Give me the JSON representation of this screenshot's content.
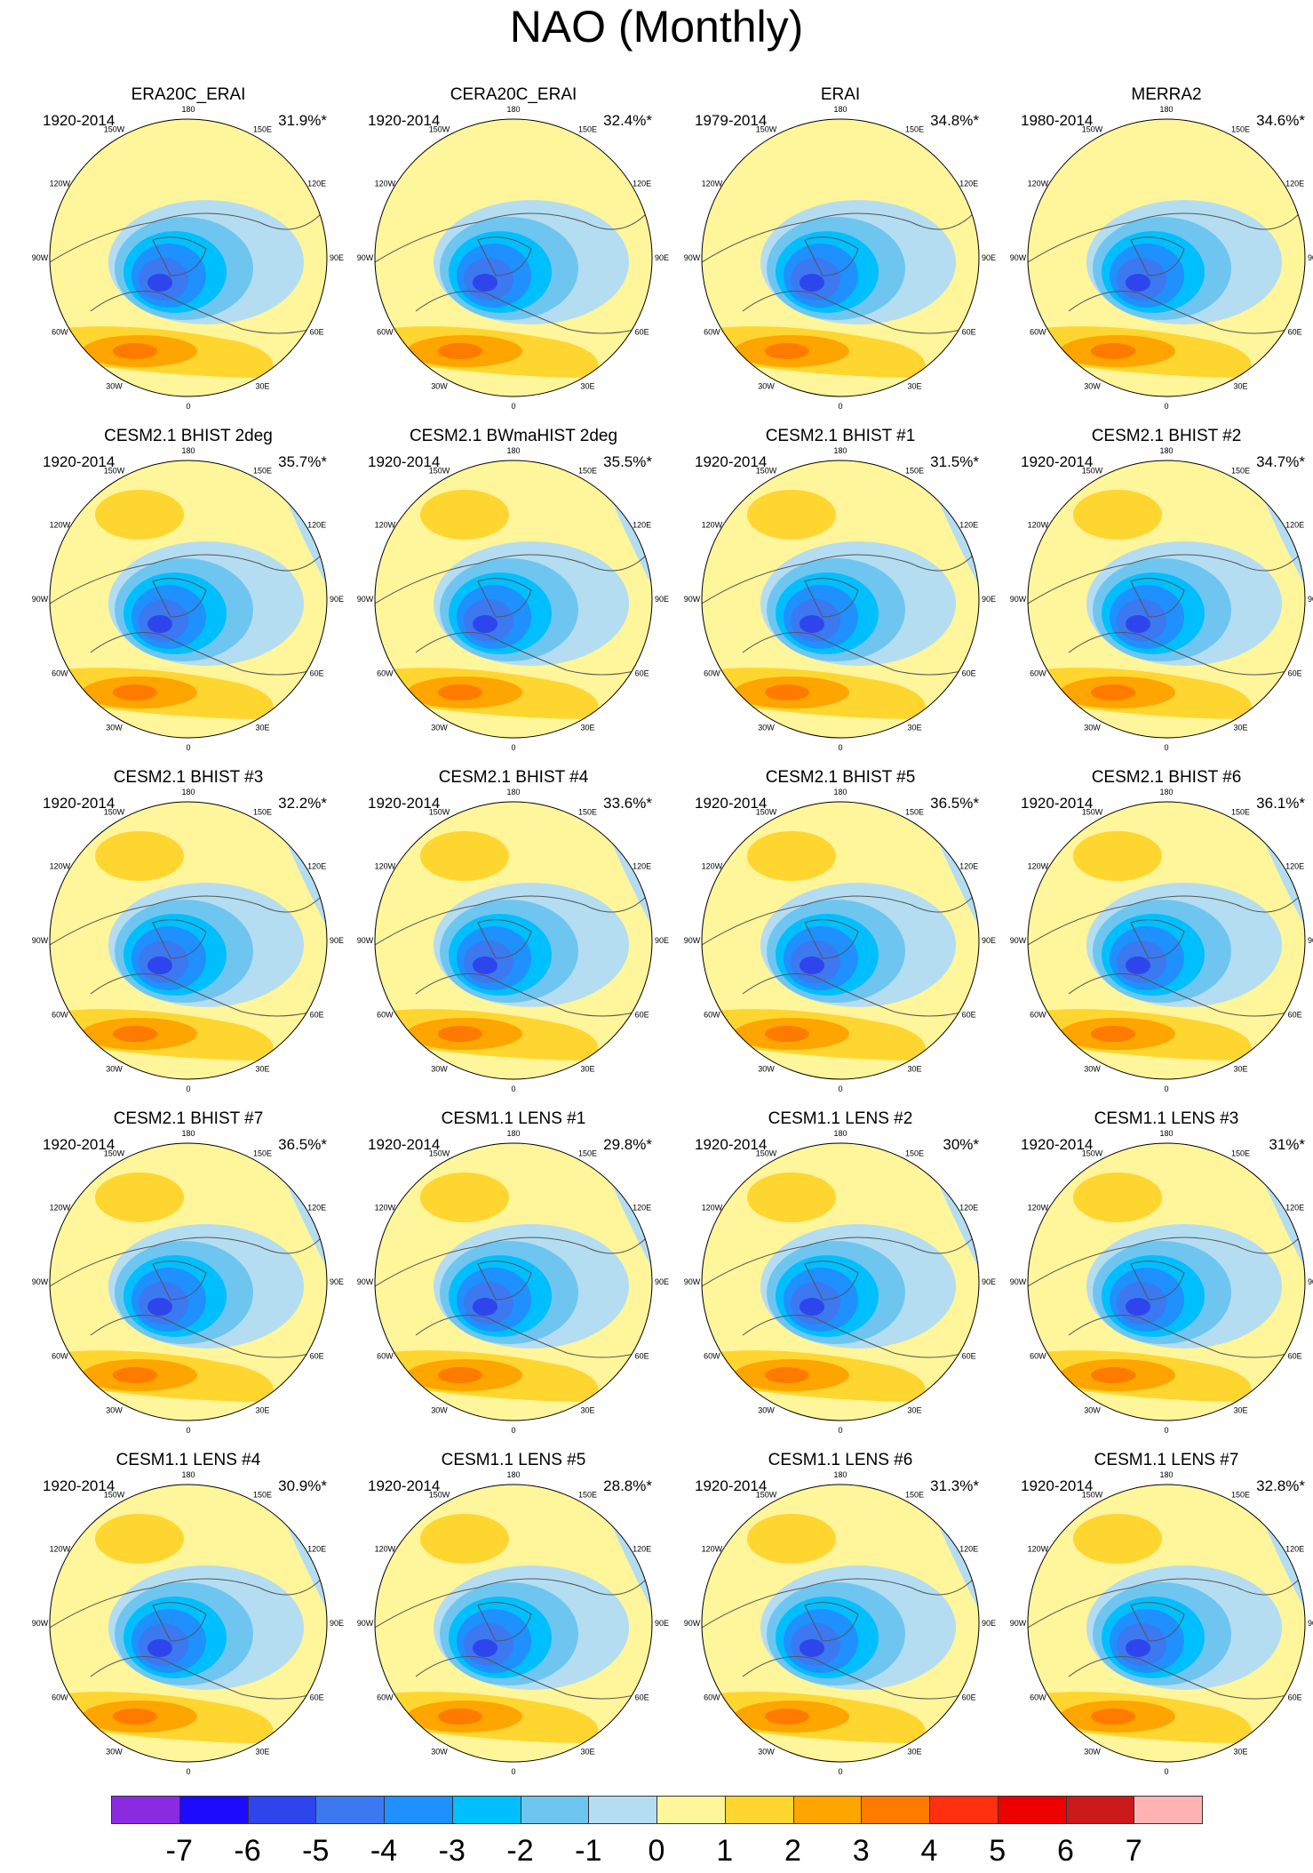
{
  "title": "NAO (Monthly)",
  "chart_data": {
    "type": "heatmap",
    "title": "NAO (Monthly)",
    "projection": "north polar stereographic",
    "longitude_labels": [
      "180",
      "150E",
      "120E",
      "90E",
      "60E",
      "30E",
      "0",
      "30W",
      "60W",
      "90W",
      "120W",
      "150W"
    ],
    "panels": [
      {
        "name": "ERA20C_ERAI",
        "years": "1920-2014",
        "variance": "31.9%*"
      },
      {
        "name": "CERA20C_ERAI",
        "years": "1920-2014",
        "variance": "32.4%*"
      },
      {
        "name": "ERAI",
        "years": "1979-2014",
        "variance": "34.8%*"
      },
      {
        "name": "MERRA2",
        "years": "1980-2014",
        "variance": "34.6%*"
      },
      {
        "name": "CESM2.1 BHIST 2deg",
        "years": "1920-2014",
        "variance": "35.7%*"
      },
      {
        "name": "CESM2.1 BWmaHIST 2deg",
        "years": "1920-2014",
        "variance": "35.5%*"
      },
      {
        "name": "CESM2.1 BHIST #1",
        "years": "1920-2014",
        "variance": "31.5%*"
      },
      {
        "name": "CESM2.1 BHIST #2",
        "years": "1920-2014",
        "variance": "34.7%*"
      },
      {
        "name": "CESM2.1 BHIST #3",
        "years": "1920-2014",
        "variance": "32.2%*"
      },
      {
        "name": "CESM2.1 BHIST #4",
        "years": "1920-2014",
        "variance": "33.6%*"
      },
      {
        "name": "CESM2.1 BHIST #5",
        "years": "1920-2014",
        "variance": "36.5%*"
      },
      {
        "name": "CESM2.1 BHIST #6",
        "years": "1920-2014",
        "variance": "36.1%*"
      },
      {
        "name": "CESM2.1 BHIST #7",
        "years": "1920-2014",
        "variance": "36.5%*"
      },
      {
        "name": "CESM1.1 LENS #1",
        "years": "1920-2014",
        "variance": "29.8%*"
      },
      {
        "name": "CESM1.1 LENS #2",
        "years": "1920-2014",
        "variance": "30%*"
      },
      {
        "name": "CESM1.1 LENS #3",
        "years": "1920-2014",
        "variance": "31%*"
      },
      {
        "name": "CESM1.1 LENS #4",
        "years": "1920-2014",
        "variance": "30.9%*"
      },
      {
        "name": "CESM1.1 LENS #5",
        "years": "1920-2014",
        "variance": "28.8%*"
      },
      {
        "name": "CESM1.1 LENS #6",
        "years": "1920-2014",
        "variance": "31.3%*"
      },
      {
        "name": "CESM1.1 LENS #7",
        "years": "1920-2014",
        "variance": "32.8%*"
      }
    ],
    "colorbar": {
      "ticks": [
        "-7",
        "-6",
        "-5",
        "-4",
        "-3",
        "-2",
        "-1",
        "0",
        "1",
        "2",
        "3",
        "4",
        "5",
        "6",
        "7"
      ],
      "colors": [
        "#8a2be2",
        "#1d0bff",
        "#2e45ee",
        "#3c78f0",
        "#1e90ff",
        "#00bfff",
        "#6ec6f0",
        "#b4ddf2",
        "#fff59a",
        "#ffd530",
        "#ffa500",
        "#ff7b00",
        "#ff3010",
        "#ee0000",
        "#cc1a1a",
        "#ffb3b3"
      ]
    }
  }
}
